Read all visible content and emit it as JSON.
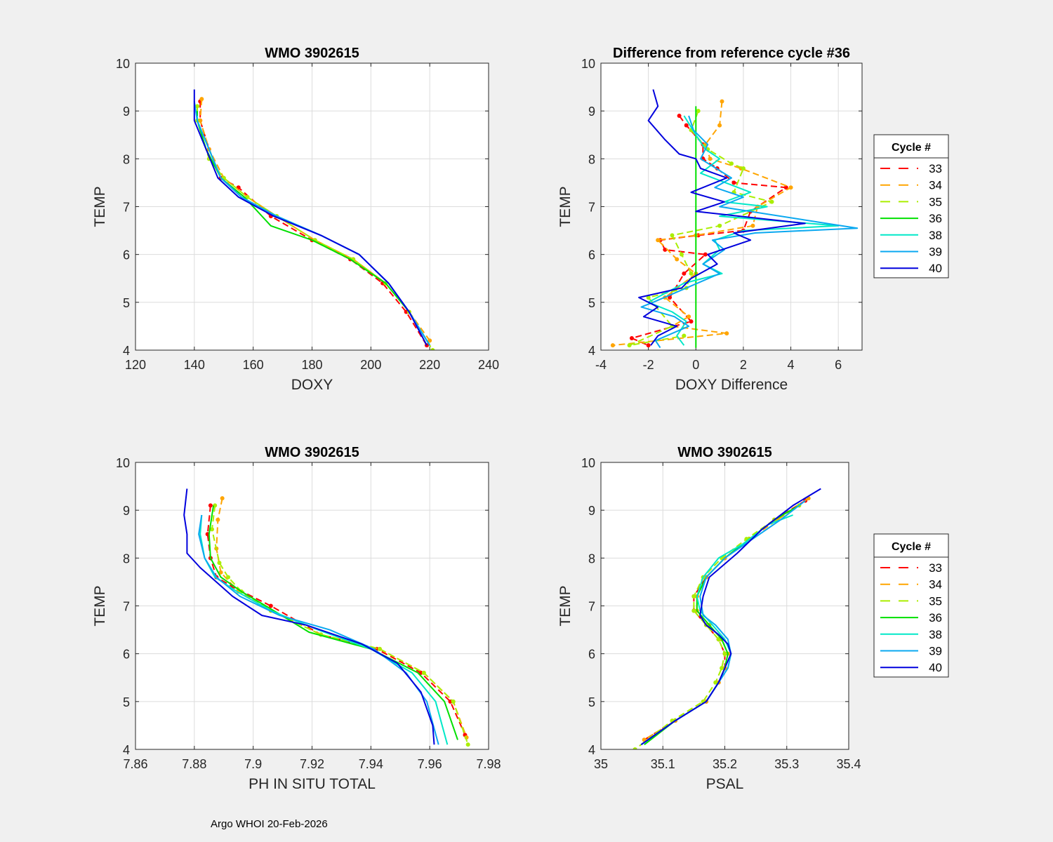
{
  "footer": "Argo WHOI 20-Feb-2026",
  "legend": {
    "title": "Cycle #",
    "entries": [
      {
        "label": "33",
        "color": "#ff0000",
        "dash": true
      },
      {
        "label": "34",
        "color": "#ffa500",
        "dash": true
      },
      {
        "label": "35",
        "color": "#aaee00",
        "dash": true
      },
      {
        "label": "36",
        "color": "#00e000",
        "dash": false
      },
      {
        "label": "38",
        "color": "#00e8c8",
        "dash": false
      },
      {
        "label": "39",
        "color": "#0aa8f0",
        "dash": false
      },
      {
        "label": "40",
        "color": "#0000dd",
        "dash": false
      }
    ]
  },
  "chart_data": [
    {
      "type": "line",
      "title": "WMO 3902615",
      "xlabel": "DOXY",
      "ylabel": "TEMP",
      "xlim": [
        120,
        240
      ],
      "ylim": [
        4,
        10
      ],
      "xticks": [
        "120",
        "140",
        "160",
        "180",
        "200",
        "220",
        "240"
      ],
      "yticks": [
        "4",
        "5",
        "6",
        "7",
        "8",
        "9",
        "10"
      ],
      "grid": true,
      "legend": false,
      "series": [
        {
          "name": "33",
          "x": [
            142,
            142,
            145,
            149,
            155,
            166,
            180,
            193,
            204,
            212,
            219
          ],
          "y": [
            9.2,
            8.8,
            8.2,
            7.6,
            7.4,
            6.8,
            6.3,
            5.9,
            5.4,
            4.8,
            4.1
          ]
        },
        {
          "name": "34",
          "x": [
            142.5,
            142,
            145,
            150,
            158,
            168,
            181,
            194,
            205,
            213,
            220
          ],
          "y": [
            9.25,
            8.8,
            8.2,
            7.6,
            7.2,
            6.8,
            6.3,
            5.9,
            5.4,
            4.8,
            4.2
          ]
        },
        {
          "name": "35",
          "x": [
            141,
            141,
            145,
            150,
            158,
            168,
            181,
            194,
            205,
            213,
            221
          ],
          "y": [
            9.1,
            8.8,
            8.0,
            7.6,
            7.2,
            6.8,
            6.3,
            5.9,
            5.4,
            4.8,
            4.0
          ]
        },
        {
          "name": "36",
          "x": [
            141,
            141,
            144,
            149,
            157,
            166,
            180,
            193,
            205,
            213,
            220
          ],
          "y": [
            9.0,
            8.8,
            8.2,
            7.6,
            7.2,
            6.6,
            6.3,
            5.9,
            5.4,
            4.8,
            4.1
          ]
        },
        {
          "name": "38",
          "x": [
            141,
            141,
            145,
            149,
            156,
            168,
            183,
            196,
            206,
            213,
            220
          ],
          "y": [
            8.9,
            8.8,
            8.2,
            7.6,
            7.2,
            6.8,
            6.4,
            6.0,
            5.4,
            4.8,
            4.1
          ]
        },
        {
          "name": "39",
          "x": [
            140,
            141,
            145,
            149,
            156,
            168,
            183,
            196,
            206,
            213,
            220
          ],
          "y": [
            9.2,
            8.8,
            8.2,
            7.6,
            7.2,
            6.8,
            6.4,
            6.0,
            5.4,
            4.8,
            4.1
          ]
        },
        {
          "name": "40",
          "x": [
            140,
            140,
            144,
            148,
            155,
            167,
            183,
            196,
            206,
            213,
            219
          ],
          "y": [
            9.45,
            8.8,
            8.2,
            7.6,
            7.2,
            6.8,
            6.4,
            6.0,
            5.4,
            4.8,
            4.1
          ]
        }
      ]
    },
    {
      "type": "line",
      "title": "Difference from reference cycle #36",
      "xlabel": "DOXY Difference",
      "ylabel": "TEMP",
      "xlim": [
        -4,
        7
      ],
      "ylim": [
        4,
        10
      ],
      "xticks": [
        "-4",
        "-2",
        "0",
        "2",
        "4",
        "6"
      ],
      "yticks": [
        "4",
        "5",
        "6",
        "7",
        "8",
        "9",
        "10"
      ],
      "grid": true,
      "legend": true,
      "series": [
        {
          "name": "33",
          "x": [
            -0.7,
            -0.4,
            0.3,
            0.3,
            0.9,
            1.6,
            3.8,
            2.3,
            2.0,
            0.1,
            -1.5,
            -1.3,
            0.4,
            -0.5,
            -1.1,
            -0.2,
            -2.7,
            -2.0
          ],
          "y": [
            8.9,
            8.7,
            8.3,
            8.0,
            7.8,
            7.5,
            7.4,
            6.9,
            6.5,
            6.4,
            6.3,
            6.1,
            6.0,
            5.6,
            5.1,
            4.6,
            4.25,
            4.1
          ]
        },
        {
          "name": "34",
          "x": [
            1.1,
            1.0,
            0.4,
            0.6,
            1.9,
            4.0,
            2.6,
            2.4,
            0.0,
            -1.6,
            -0.8,
            0.0,
            -1.3,
            -0.3,
            -1.0,
            1.3,
            -3.5
          ],
          "y": [
            9.2,
            8.7,
            8.3,
            8.0,
            7.8,
            7.4,
            7.0,
            6.6,
            6.4,
            6.3,
            5.9,
            5.6,
            5.1,
            4.7,
            4.5,
            4.35,
            4.1
          ]
        },
        {
          "name": "35",
          "x": [
            0.1,
            -0.2,
            0.5,
            1.5,
            2.0,
            1.6,
            3.2,
            1.0,
            -1.0,
            -0.6,
            -0.2,
            -0.4,
            -2.0,
            -1.0,
            -2.8,
            -0.5
          ],
          "y": [
            9.0,
            8.6,
            8.2,
            7.9,
            7.8,
            7.3,
            7.1,
            6.6,
            6.4,
            6.0,
            5.6,
            5.3,
            5.1,
            4.5,
            4.1,
            4.3
          ]
        },
        {
          "name": "36",
          "x": [
            0,
            0,
            0,
            0,
            0,
            0,
            0
          ],
          "y": [
            9.1,
            8.0,
            7.0,
            6.45,
            6.0,
            5.0,
            4.05
          ]
        },
        {
          "name": "38",
          "x": [
            -0.5,
            0.0,
            0.4,
            1.0,
            0.2,
            2.3,
            1.2,
            3.0,
            1.0,
            6.0,
            2.0,
            0.8,
            1.0,
            0.3,
            1.1,
            -0.5,
            -2.0,
            -1.0,
            -0.4,
            -0.8,
            -0.5
          ],
          "y": [
            8.9,
            8.5,
            8.2,
            8.0,
            7.7,
            7.3,
            7.1,
            7.0,
            6.8,
            6.6,
            6.5,
            6.3,
            6.1,
            5.8,
            5.6,
            5.4,
            5.0,
            4.8,
            4.6,
            4.3,
            4.1
          ]
        },
        {
          "name": "39",
          "x": [
            -0.3,
            -0.1,
            0.5,
            0.2,
            1.5,
            0.8,
            2.0,
            1.0,
            6.8,
            2.5,
            0.7,
            1.2,
            0.3,
            1.0,
            -0.4,
            -1.8,
            -2.3,
            -0.9,
            -0.3,
            -1.7,
            -1.5
          ],
          "y": [
            8.9,
            8.6,
            8.3,
            8.0,
            7.6,
            7.4,
            7.2,
            7.0,
            6.55,
            6.45,
            6.3,
            6.1,
            5.8,
            5.6,
            5.3,
            5.0,
            4.9,
            4.7,
            4.5,
            4.2,
            4.05
          ]
        },
        {
          "name": "40",
          "x": [
            -1.8,
            -1.6,
            -2.0,
            -1.3,
            -0.7,
            0.0,
            0.2,
            1.3,
            -0.2,
            1.2,
            0.0,
            4.6,
            1.6,
            2.3,
            0.5,
            0.9,
            -0.2,
            -0.6,
            -2.4,
            -1.6,
            -2.2,
            -0.8,
            -1.6,
            -1.9
          ],
          "y": [
            9.45,
            9.1,
            8.8,
            8.4,
            8.1,
            8.0,
            7.8,
            7.6,
            7.3,
            7.1,
            6.9,
            6.65,
            6.45,
            6.3,
            6.0,
            5.8,
            5.5,
            5.3,
            5.1,
            4.9,
            4.7,
            4.5,
            4.3,
            4.1
          ]
        }
      ]
    },
    {
      "type": "line",
      "title": "WMO 3902615",
      "xlabel": "PH IN SITU TOTAL",
      "ylabel": "TEMP",
      "xlim": [
        7.86,
        7.98
      ],
      "ylim": [
        4,
        10
      ],
      "xticks": [
        "7.86",
        "7.88",
        "7.9",
        "7.92",
        "7.94",
        "7.96",
        "7.98"
      ],
      "yticks": [
        "4",
        "5",
        "6",
        "7",
        "8",
        "9",
        "10"
      ],
      "grid": true,
      "legend": false,
      "series": [
        {
          "name": "33",
          "x": [
            7.8855,
            7.8845,
            7.8855,
            7.8875,
            7.893,
            7.906,
            7.923,
            7.942,
            7.957,
            7.967,
            7.972
          ],
          "y": [
            9.1,
            8.5,
            8.0,
            7.6,
            7.4,
            7.0,
            6.4,
            6.1,
            5.6,
            5.0,
            4.3
          ]
        },
        {
          "name": "34",
          "x": [
            7.8895,
            7.888,
            7.8875,
            7.889,
            7.895,
            7.906,
            7.923,
            7.943,
            7.958,
            7.968,
            7.9725
          ],
          "y": [
            9.25,
            8.8,
            8.2,
            7.7,
            7.3,
            6.9,
            6.4,
            6.1,
            5.6,
            5.0,
            4.25
          ]
        },
        {
          "name": "35",
          "x": [
            7.887,
            7.886,
            7.8885,
            7.8915,
            7.896,
            7.906,
            7.923,
            7.943,
            7.958,
            7.968,
            7.973
          ],
          "y": [
            9.1,
            8.6,
            7.9,
            7.6,
            7.3,
            6.9,
            6.4,
            6.1,
            5.6,
            5.0,
            4.1
          ]
        },
        {
          "name": "36",
          "x": [
            7.8865,
            7.885,
            7.8855,
            7.889,
            7.896,
            7.907,
            7.919,
            7.94,
            7.956,
            7.965,
            7.9695
          ],
          "y": [
            9.1,
            8.5,
            8.0,
            7.6,
            7.3,
            6.9,
            6.45,
            6.1,
            5.6,
            5.0,
            4.2
          ]
        },
        {
          "name": "38",
          "x": [
            7.8825,
            7.882,
            7.8835,
            7.887,
            7.8945,
            7.906,
            7.922,
            7.94,
            7.954,
            7.962,
            7.966
          ],
          "y": [
            8.9,
            8.5,
            8.0,
            7.6,
            7.3,
            6.9,
            6.5,
            6.1,
            5.6,
            5.0,
            4.1
          ]
        },
        {
          "name": "39",
          "x": [
            7.8825,
            7.8815,
            7.8835,
            7.8875,
            7.8955,
            7.909,
            7.926,
            7.941,
            7.952,
            7.959,
            7.963
          ],
          "y": [
            8.9,
            8.5,
            8.0,
            7.6,
            7.2,
            6.8,
            6.5,
            6.1,
            5.6,
            5.0,
            4.1
          ]
        },
        {
          "name": "40",
          "x": [
            7.8775,
            7.8765,
            7.8775,
            7.8775,
            7.882,
            7.893,
            7.903,
            7.918,
            7.937,
            7.949,
            7.957,
            7.961,
            7.9615
          ],
          "y": [
            9.45,
            8.9,
            8.5,
            8.1,
            7.8,
            7.2,
            6.8,
            6.6,
            6.2,
            5.8,
            5.2,
            4.5,
            4.1
          ]
        }
      ]
    },
    {
      "type": "line",
      "title": "WMO 3902615",
      "xlabel": "PSAL",
      "ylabel": "TEMP",
      "xlim": [
        35,
        35.4
      ],
      "ylim": [
        4,
        10
      ],
      "xticks": [
        "35",
        "35.1",
        "35.2",
        "35.3",
        "35.4"
      ],
      "yticks": [
        "4",
        "5",
        "6",
        "7",
        "8",
        "9",
        "10"
      ],
      "grid": true,
      "legend": true,
      "series": [
        {
          "name": "33",
          "x": [
            35.33,
            35.28,
            35.24,
            35.2,
            35.17,
            35.15,
            35.15,
            35.17,
            35.19,
            35.2,
            35.2,
            35.19,
            35.17,
            35.12,
            35.07
          ],
          "y": [
            9.2,
            8.8,
            8.4,
            8.0,
            7.6,
            7.2,
            6.9,
            6.6,
            6.3,
            6.0,
            5.7,
            5.4,
            5.0,
            4.6,
            4.2
          ]
        },
        {
          "name": "34",
          "x": [
            35.335,
            35.285,
            35.24,
            35.2,
            35.17,
            35.155,
            35.155,
            35.175,
            35.195,
            35.205,
            35.2,
            35.19,
            35.17,
            35.12,
            35.07
          ],
          "y": [
            9.25,
            8.8,
            8.4,
            8.0,
            7.6,
            7.2,
            6.9,
            6.6,
            6.3,
            6.0,
            5.7,
            5.4,
            5.0,
            4.6,
            4.2
          ]
        },
        {
          "name": "35",
          "x": [
            35.32,
            35.28,
            35.235,
            35.195,
            35.165,
            35.15,
            35.15,
            35.17,
            35.19,
            35.2,
            35.195,
            35.185,
            35.165,
            35.115,
            35.055
          ],
          "y": [
            9.1,
            8.8,
            8.4,
            8.0,
            7.6,
            7.2,
            6.9,
            6.6,
            6.3,
            6.0,
            5.7,
            5.4,
            5.0,
            4.6,
            4.0
          ]
        },
        {
          "name": "36",
          "x": [
            35.32,
            35.28,
            35.24,
            35.2,
            35.17,
            35.155,
            35.155,
            35.175,
            35.195,
            35.205,
            35.2,
            35.19,
            35.17,
            35.12,
            35.07
          ],
          "y": [
            9.1,
            8.8,
            8.4,
            8.0,
            7.6,
            7.2,
            6.9,
            6.6,
            6.3,
            6.0,
            5.7,
            5.4,
            5.0,
            4.6,
            4.1
          ]
        },
        {
          "name": "38",
          "x": [
            35.31,
            35.27,
            35.23,
            35.19,
            35.165,
            35.155,
            35.16,
            35.18,
            35.2,
            35.21,
            35.205,
            35.19,
            35.17,
            35.12,
            35.065
          ],
          "y": [
            8.9,
            8.7,
            8.3,
            8.0,
            7.6,
            7.2,
            6.9,
            6.6,
            6.3,
            6.0,
            5.7,
            5.4,
            5.0,
            4.6,
            4.1
          ]
        },
        {
          "name": "39",
          "x": [
            35.33,
            35.29,
            35.245,
            35.2,
            35.17,
            35.16,
            35.165,
            35.185,
            35.205,
            35.21,
            35.205,
            35.19,
            35.17,
            35.12,
            35.065
          ],
          "y": [
            9.2,
            8.8,
            8.4,
            8.0,
            7.6,
            7.2,
            6.8,
            6.6,
            6.3,
            6.0,
            5.7,
            5.4,
            5.0,
            4.6,
            4.1
          ]
        },
        {
          "name": "40",
          "x": [
            35.355,
            35.31,
            35.26,
            35.22,
            35.175,
            35.165,
            35.16,
            35.17,
            35.19,
            35.205,
            35.21,
            35.2,
            35.19,
            35.17,
            35.12,
            35.065
          ],
          "y": [
            9.45,
            9.1,
            8.6,
            8.1,
            7.6,
            7.2,
            6.8,
            6.6,
            6.4,
            6.2,
            6.0,
            5.7,
            5.4,
            5.0,
            4.6,
            4.1
          ]
        }
      ]
    }
  ]
}
